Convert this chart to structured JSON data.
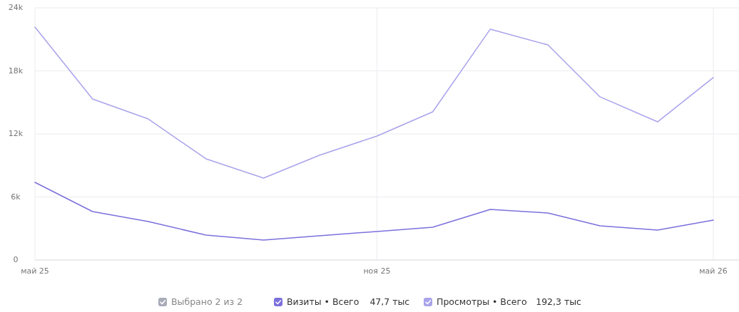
{
  "chart_data": {
    "type": "line",
    "x": [
      "2025-05",
      "2025-06",
      "2025-07",
      "2025-08",
      "2025-09",
      "2025-10",
      "2025-11",
      "2025-12",
      "2026-01",
      "2026-02",
      "2026-03",
      "2026-04",
      "2026-05"
    ],
    "series": [
      {
        "name": "Визиты • Всего",
        "color": "#7b70dc",
        "values": [
          7390,
          4610,
          3660,
          2370,
          1900,
          2310,
          2710,
          3120,
          4810,
          4470,
          3250,
          2850,
          3800
        ]
      },
      {
        "name": "Просмотры • Всего",
        "color": "#a9a3eb",
        "values": [
          22170,
          15320,
          13420,
          9630,
          7800,
          9970,
          11800,
          14100,
          21970,
          20470,
          15530,
          13150,
          17360
        ]
      }
    ],
    "xlim": [
      "2025-05",
      "2026-05"
    ],
    "xticks": [
      {
        "value": "2025-05",
        "label": "май 25"
      },
      {
        "value": "2025-11",
        "label": "ноя 25"
      },
      {
        "value": "2026-05",
        "label": "май 26"
      }
    ],
    "ylim": [
      0,
      24000
    ],
    "yticks": [
      {
        "value": 0,
        "label": "0"
      },
      {
        "value": 6000,
        "label": "6k"
      },
      {
        "value": 12000,
        "label": "12k"
      },
      {
        "value": 18000,
        "label": "18k"
      },
      {
        "value": 24000,
        "label": "24k"
      }
    ],
    "grid": true,
    "legend": "bottom",
    "marker": "none",
    "line_style": "solid",
    "annotations": [
      "Выбрано 2 из 2",
      "47,7 тыс",
      "192,3 тыс"
    ]
  }
}
